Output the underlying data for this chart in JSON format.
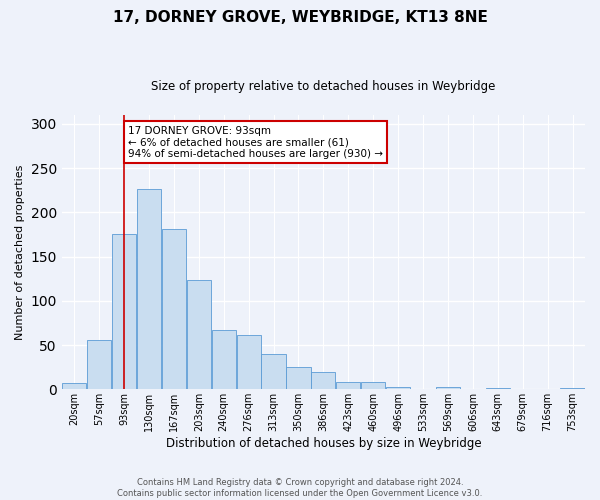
{
  "title": "17, DORNEY GROVE, WEYBRIDGE, KT13 8NE",
  "subtitle": "Size of property relative to detached houses in Weybridge",
  "xlabel": "Distribution of detached houses by size in Weybridge",
  "ylabel": "Number of detached properties",
  "bin_labels": [
    "20sqm",
    "57sqm",
    "93sqm",
    "130sqm",
    "167sqm",
    "203sqm",
    "240sqm",
    "276sqm",
    "313sqm",
    "350sqm",
    "386sqm",
    "423sqm",
    "460sqm",
    "496sqm",
    "533sqm",
    "569sqm",
    "606sqm",
    "643sqm",
    "679sqm",
    "716sqm",
    "753sqm"
  ],
  "bar_values": [
    7,
    56,
    175,
    226,
    181,
    123,
    67,
    61,
    40,
    25,
    20,
    8,
    8,
    3,
    0,
    3,
    0,
    2,
    0,
    0,
    2
  ],
  "bar_color": "#c9ddf0",
  "bar_edge_color": "#5b9bd5",
  "vline_x_index": 2,
  "vline_color": "#cc0000",
  "annotation_text": "17 DORNEY GROVE: 93sqm\n← 6% of detached houses are smaller (61)\n94% of semi-detached houses are larger (930) →",
  "annotation_box_color": "#ffffff",
  "annotation_box_edge_color": "#cc0000",
  "footer_line1": "Contains HM Land Registry data © Crown copyright and database right 2024.",
  "footer_line2": "Contains public sector information licensed under the Open Government Licence v3.0.",
  "ylim": [
    0,
    310
  ],
  "background_color": "#eef2fa"
}
